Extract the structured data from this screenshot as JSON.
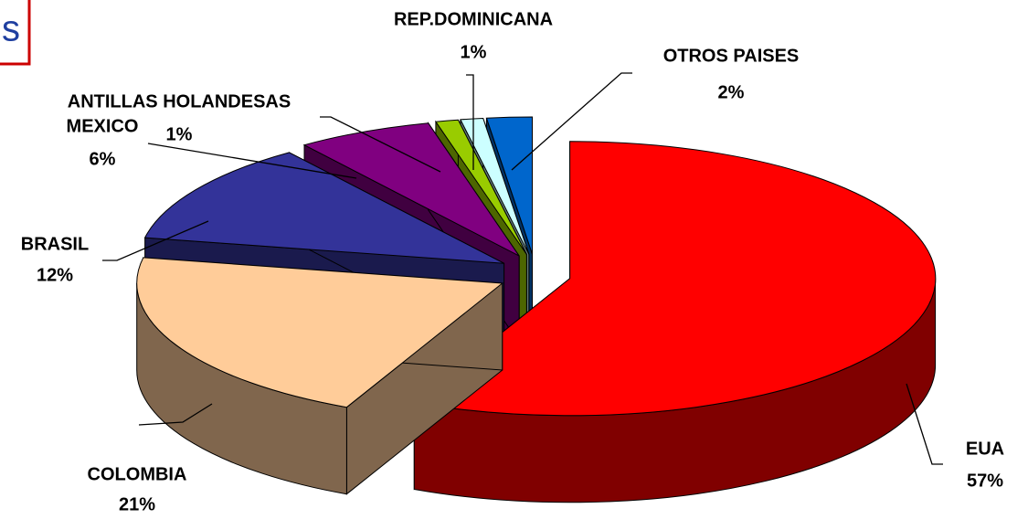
{
  "chart_data": {
    "type": "pie",
    "title": "s",
    "categories": [
      "EUA",
      "COLOMBIA",
      "BRASIL",
      "MEXICO",
      "ANTILLAS HOLANDESAS",
      "REP.DOMINICANA",
      "OTROS PAISES"
    ],
    "values": [
      57,
      21,
      12,
      6,
      1,
      1,
      2
    ],
    "value_labels": [
      "57%",
      "21%",
      "12%",
      "6%",
      "1%",
      "1%",
      "2%"
    ],
    "colors": [
      "#ff0000",
      "#ffcc99",
      "#333399",
      "#800080",
      "#99cc00",
      "#ccffff",
      "#0066cc"
    ],
    "style": "3d-exploded"
  }
}
